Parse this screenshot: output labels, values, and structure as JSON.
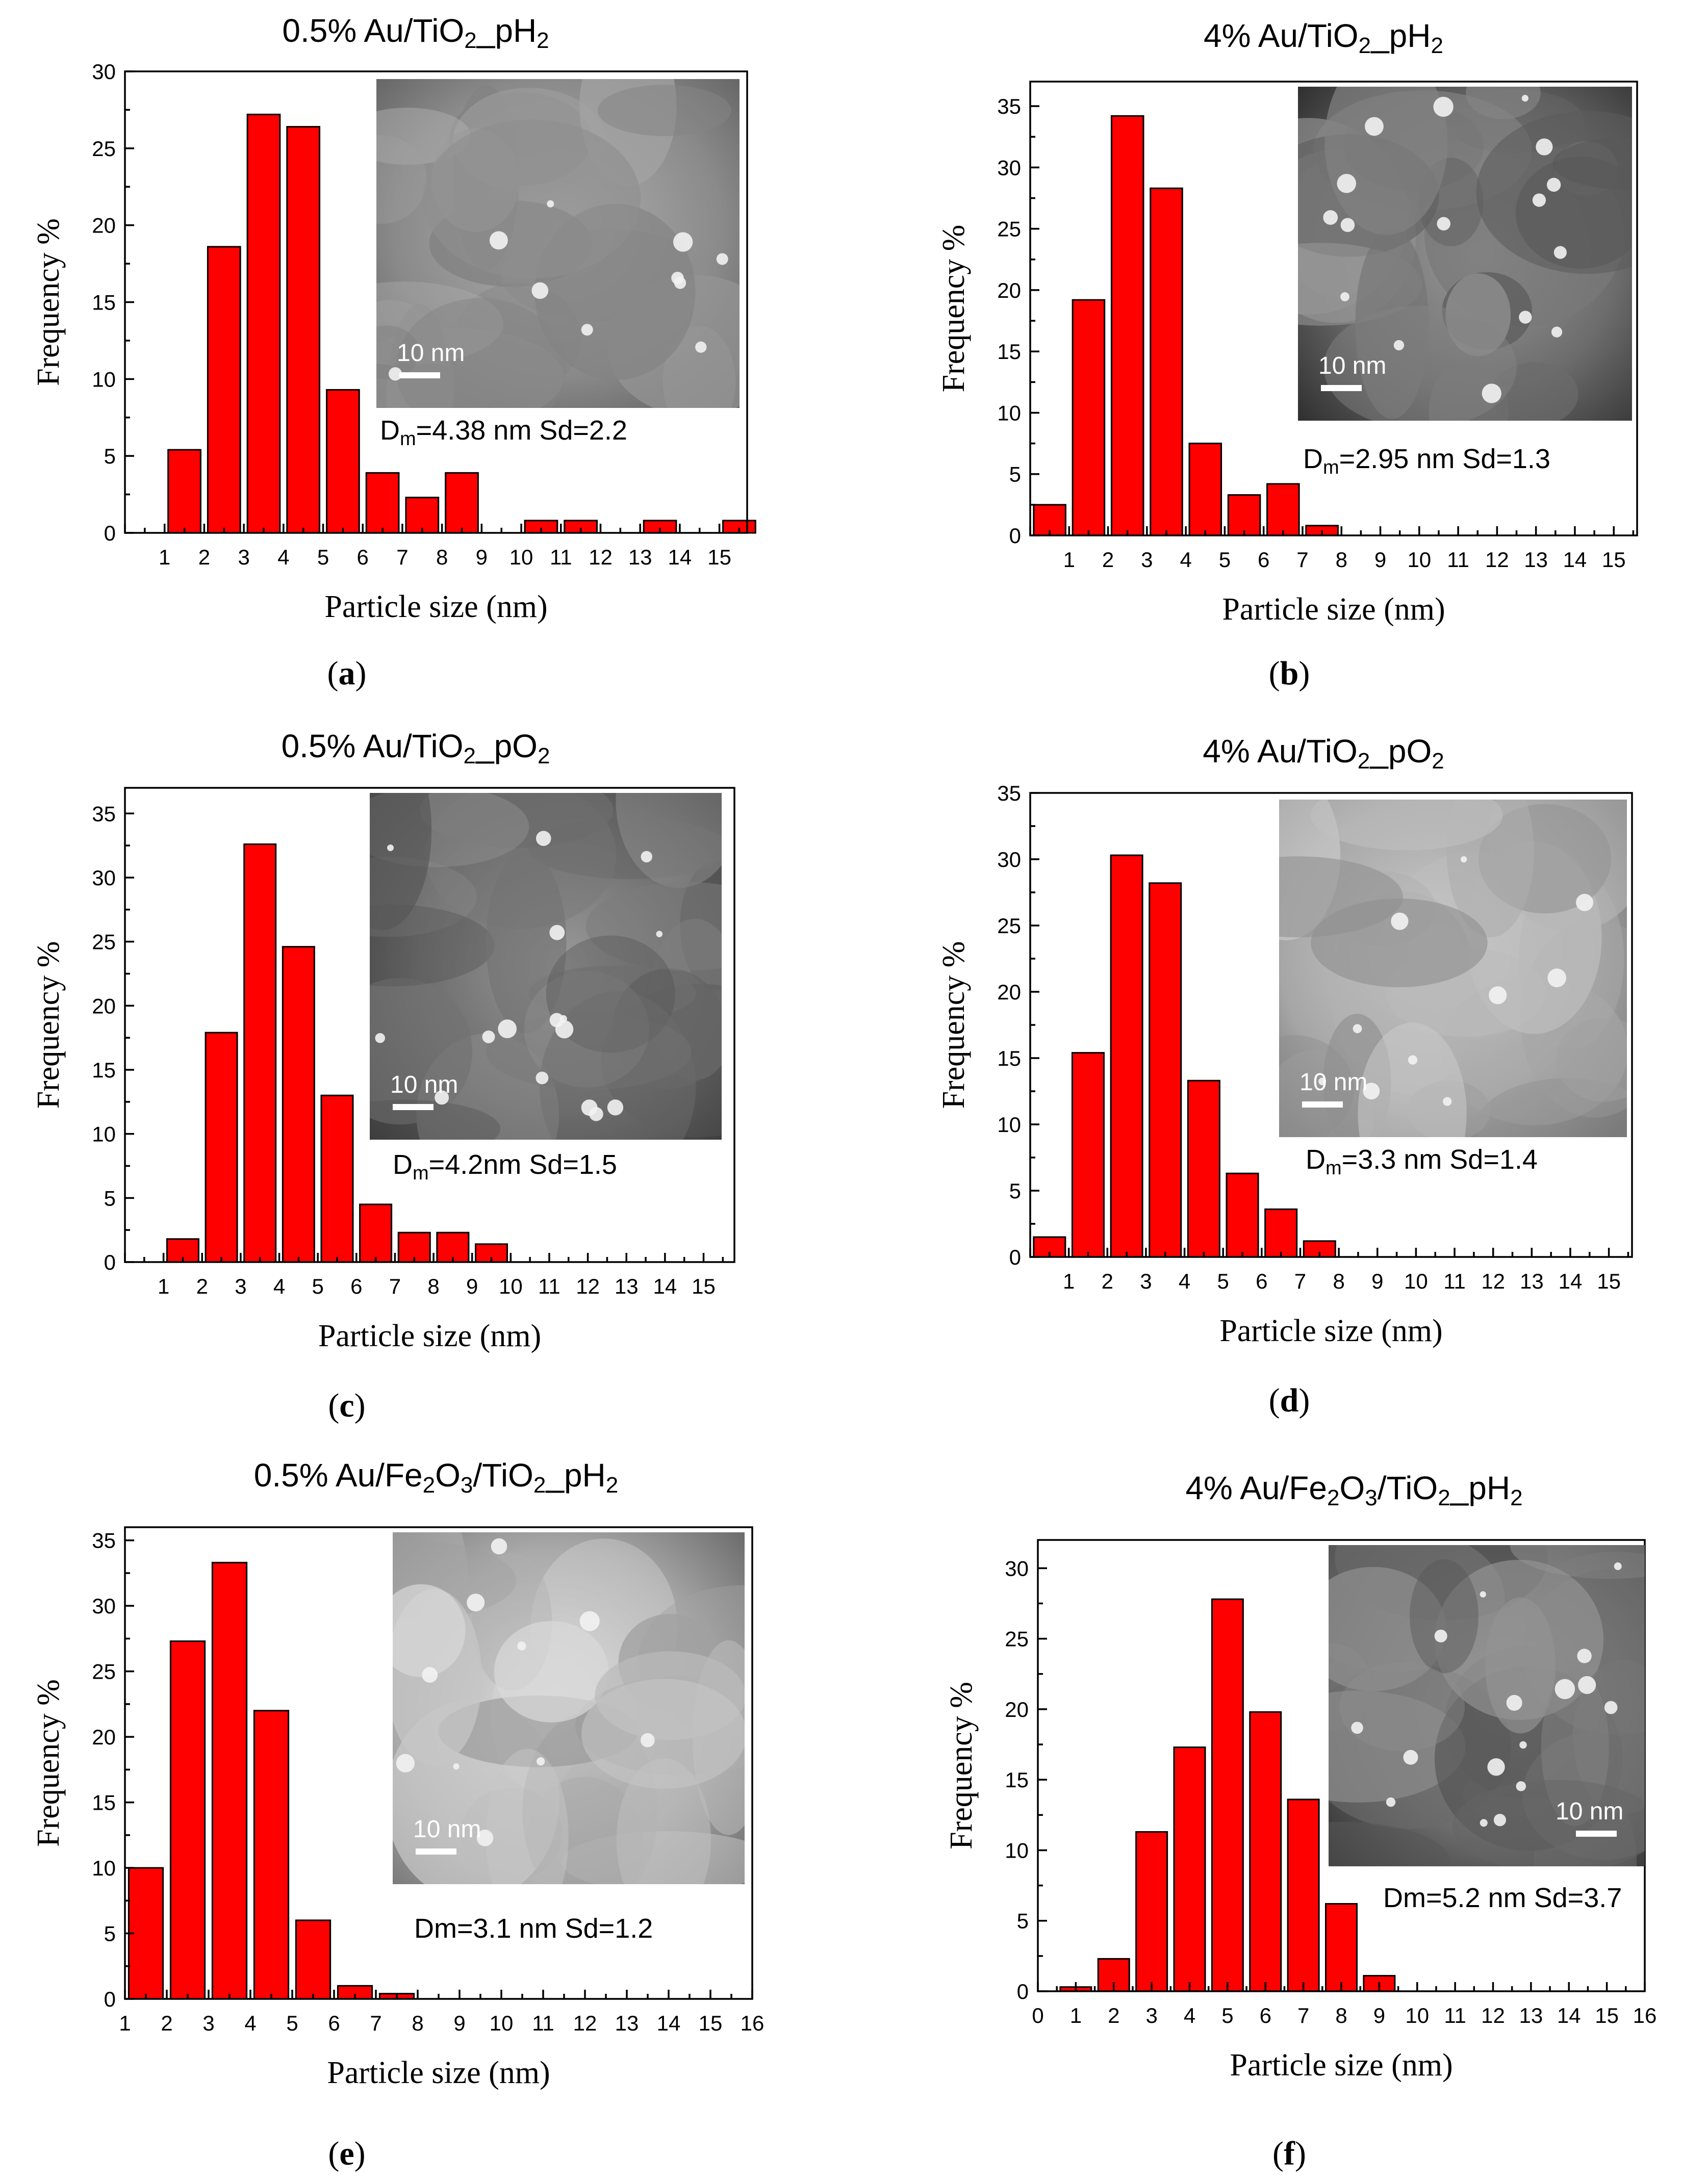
{
  "chart_data": [
    {
      "panel": "(a)",
      "panel_letter": "a",
      "type": "bar",
      "title_parts": [
        "0.5% Au/TiO",
        "2",
        "_pH",
        "2"
      ],
      "xlabel": "Particle size (nm)",
      "ylabel": "Frequency %",
      "xlim": [
        0,
        15.7
      ],
      "ylim": [
        0,
        30
      ],
      "x_ticks": [
        1,
        2,
        3,
        4,
        5,
        6,
        7,
        8,
        9,
        10,
        11,
        12,
        13,
        14,
        15
      ],
      "y_ticks": [
        0,
        5,
        10,
        15,
        20,
        25,
        30
      ],
      "bars": [
        {
          "x": 1.5,
          "v": 5.4
        },
        {
          "x": 2.5,
          "v": 18.6
        },
        {
          "x": 3.5,
          "v": 27.2
        },
        {
          "x": 4.5,
          "v": 26.4
        },
        {
          "x": 5.5,
          "v": 9.3
        },
        {
          "x": 6.5,
          "v": 3.9
        },
        {
          "x": 7.5,
          "v": 2.3
        },
        {
          "x": 8.5,
          "v": 3.9
        },
        {
          "x": 10.5,
          "v": 0.8
        },
        {
          "x": 11.5,
          "v": 0.8
        },
        {
          "x": 13.5,
          "v": 0.8
        },
        {
          "x": 15.5,
          "v": 0.8
        }
      ],
      "image": {
        "tone": "medium",
        "scale_bar": "10 nm",
        "scale_pos": "bottom-left"
      },
      "annotation": {
        "parts": [
          "D",
          "m",
          "=4.38 nm  Sd=2.2"
        ]
      }
    },
    {
      "panel": "(b)",
      "panel_letter": "b",
      "type": "bar",
      "title_parts": [
        "4% Au/TiO",
        "2",
        "_pH",
        "2"
      ],
      "xlabel": "Particle size (nm)",
      "ylabel": "Frequency %",
      "xlim": [
        0,
        15.6
      ],
      "ylim": [
        0,
        37
      ],
      "x_ticks": [
        1,
        2,
        3,
        4,
        5,
        6,
        7,
        8,
        9,
        10,
        11,
        12,
        13,
        14,
        15
      ],
      "y_ticks": [
        0,
        5,
        10,
        15,
        20,
        25,
        30,
        35
      ],
      "bars": [
        {
          "x": 0.5,
          "v": 2.5
        },
        {
          "x": 1.5,
          "v": 19.2
        },
        {
          "x": 2.5,
          "v": 34.2
        },
        {
          "x": 3.5,
          "v": 28.3
        },
        {
          "x": 4.5,
          "v": 7.5
        },
        {
          "x": 5.5,
          "v": 3.3
        },
        {
          "x": 6.5,
          "v": 4.2
        },
        {
          "x": 7.5,
          "v": 0.8
        }
      ],
      "image": {
        "tone": "dark",
        "scale_bar": "10 nm",
        "scale_pos": "bottom-left"
      },
      "annotation": {
        "parts": [
          "D",
          "m",
          "=2.95 nm  Sd=1.3"
        ]
      }
    },
    {
      "panel": "(c)",
      "panel_letter": "c",
      "type": "bar",
      "title_parts": [
        "0.5% Au/TiO",
        "2",
        "_pO",
        "2"
      ],
      "xlabel": "Particle size (nm)",
      "ylabel": "Frequency %",
      "xlim": [
        0,
        15.8
      ],
      "ylim": [
        0,
        37
      ],
      "x_ticks": [
        1,
        2,
        3,
        4,
        5,
        6,
        7,
        8,
        9,
        10,
        11,
        12,
        13,
        14,
        15
      ],
      "y_ticks": [
        0,
        5,
        10,
        15,
        20,
        25,
        30,
        35
      ],
      "bars": [
        {
          "x": 1.5,
          "v": 1.8
        },
        {
          "x": 2.5,
          "v": 17.9
        },
        {
          "x": 3.5,
          "v": 32.6
        },
        {
          "x": 4.5,
          "v": 24.6
        },
        {
          "x": 5.5,
          "v": 13.0
        },
        {
          "x": 6.5,
          "v": 4.5
        },
        {
          "x": 7.5,
          "v": 2.3
        },
        {
          "x": 8.5,
          "v": 2.3
        },
        {
          "x": 9.5,
          "v": 1.4
        }
      ],
      "image": {
        "tone": "dark",
        "scale_bar": "10 nm",
        "scale_pos": "bottom-left"
      },
      "annotation": {
        "parts": [
          "D",
          "m",
          "=4.2nm Sd=1.5"
        ]
      }
    },
    {
      "panel": "(d)",
      "panel_letter": "d",
      "type": "bar",
      "title_parts": [
        "4% Au/TiO",
        "2",
        "_pO",
        "2"
      ],
      "xlabel": "Particle size (nm)",
      "ylabel": "Frequency %",
      "xlim": [
        0,
        15.6
      ],
      "ylim": [
        0,
        35
      ],
      "x_ticks": [
        1,
        2,
        3,
        4,
        5,
        6,
        7,
        8,
        9,
        10,
        11,
        12,
        13,
        14,
        15
      ],
      "y_ticks": [
        0,
        5,
        10,
        15,
        20,
        25,
        30,
        35
      ],
      "bars": [
        {
          "x": 0.5,
          "v": 1.5
        },
        {
          "x": 1.5,
          "v": 15.4
        },
        {
          "x": 2.5,
          "v": 30.3
        },
        {
          "x": 3.5,
          "v": 28.2
        },
        {
          "x": 4.5,
          "v": 13.3
        },
        {
          "x": 5.5,
          "v": 6.3
        },
        {
          "x": 6.5,
          "v": 3.6
        },
        {
          "x": 7.5,
          "v": 1.2
        }
      ],
      "image": {
        "tone": "light",
        "scale_bar": "10 nm",
        "scale_pos": "bottom-left"
      },
      "annotation": {
        "parts": [
          "D",
          "m",
          "=3.3 nm Sd=1.4"
        ]
      }
    },
    {
      "panel": "(e)",
      "panel_letter": "e",
      "type": "bar",
      "title_parts": [
        "0.5% Au/Fe",
        "2",
        "O",
        "3",
        "/TiO",
        "2",
        "_pH",
        "2"
      ],
      "xlabel": "Particle size (nm)",
      "ylabel": "Frequency %",
      "xlim": [
        1,
        16
      ],
      "ylim": [
        0,
        36
      ],
      "x_ticks": [
        1,
        2,
        3,
        4,
        5,
        6,
        7,
        8,
        9,
        10,
        11,
        12,
        13,
        14,
        15,
        16
      ],
      "y_ticks": [
        0,
        5,
        10,
        15,
        20,
        25,
        30,
        35
      ],
      "bars": [
        {
          "x": 1.5,
          "v": 10.0
        },
        {
          "x": 2.5,
          "v": 27.3
        },
        {
          "x": 3.5,
          "v": 33.3
        },
        {
          "x": 4.5,
          "v": 22.0
        },
        {
          "x": 5.5,
          "v": 6.0
        },
        {
          "x": 6.5,
          "v": 1.0
        },
        {
          "x": 7.5,
          "v": 0.4
        }
      ],
      "image": {
        "tone": "bright",
        "scale_bar": "10 nm",
        "scale_pos": "bottom-left"
      },
      "annotation": {
        "parts": [
          "Dm=3.1 nm  Sd=1.2"
        ]
      }
    },
    {
      "panel": "(f)",
      "panel_letter": "f",
      "type": "bar",
      "title_parts": [
        "4% Au/Fe",
        "2",
        "O",
        "3",
        "/TiO",
        "2",
        "_pH",
        "2"
      ],
      "xlabel": "Particle size (nm)",
      "ylabel": "Frequency %",
      "xlim": [
        0,
        16
      ],
      "ylim": [
        0,
        32
      ],
      "x_ticks": [
        0,
        1,
        2,
        3,
        4,
        5,
        6,
        7,
        8,
        9,
        10,
        11,
        12,
        13,
        14,
        15,
        16
      ],
      "y_ticks": [
        0,
        5,
        10,
        15,
        20,
        25,
        30
      ],
      "bars": [
        {
          "x": 1,
          "v": 0.3
        },
        {
          "x": 2,
          "v": 2.3
        },
        {
          "x": 3,
          "v": 11.3
        },
        {
          "x": 4,
          "v": 17.3
        },
        {
          "x": 5,
          "v": 27.8
        },
        {
          "x": 6,
          "v": 19.8
        },
        {
          "x": 7,
          "v": 13.6
        },
        {
          "x": 8,
          "v": 6.2
        },
        {
          "x": 9,
          "v": 1.1
        }
      ],
      "image": {
        "tone": "dark",
        "scale_bar": "10 nm",
        "scale_pos": "bottom-right"
      },
      "annotation": {
        "parts": [
          "Dm=5.2 nm Sd=3.7"
        ]
      }
    }
  ]
}
